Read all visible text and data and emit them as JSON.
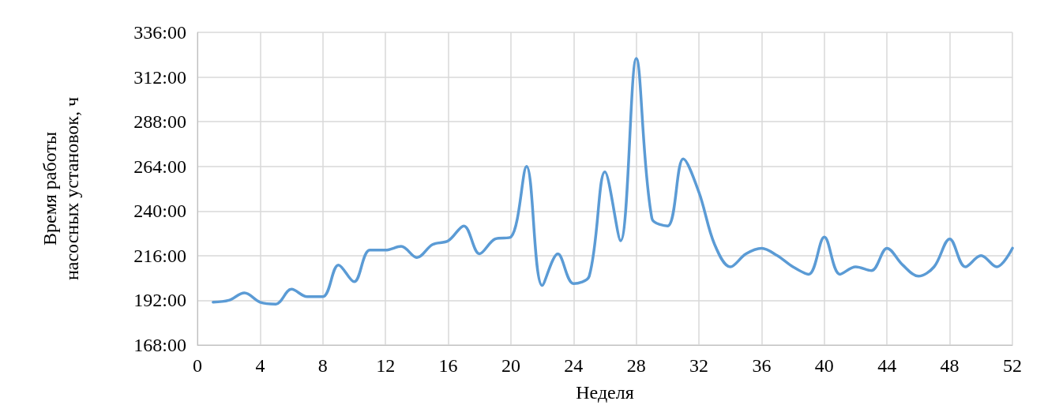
{
  "chart_data": {
    "type": "line",
    "xlabel": "Неделя",
    "ylabel": "Время работы насосных установок, ч",
    "x": [
      1,
      2,
      3,
      4,
      5,
      6,
      7,
      8,
      9,
      10,
      11,
      12,
      13,
      14,
      15,
      16,
      17,
      18,
      19,
      20,
      21,
      22,
      23,
      24,
      25,
      26,
      27,
      28,
      29,
      30,
      31,
      32,
      33,
      34,
      35,
      36,
      37,
      38,
      39,
      40,
      41,
      42,
      43,
      44,
      45,
      46,
      47,
      48,
      49,
      50,
      51,
      52
    ],
    "series": [
      {
        "color": "#5b9bd5",
        "values": [
          191,
          192,
          196,
          191,
          190,
          198,
          194,
          194,
          211,
          202,
          219,
          219,
          221,
          215,
          222,
          224,
          232,
          217,
          225,
          226,
          264,
          200,
          217,
          201,
          205,
          261,
          224,
          322,
          236,
          232,
          268,
          250,
          222,
          210,
          217,
          220,
          216,
          210,
          206,
          226,
          206,
          210,
          208,
          220,
          211,
          205,
          210,
          225,
          210,
          216,
          210,
          220
        ]
      }
    ],
    "xlim": [
      0,
      52
    ],
    "xticks": [
      0,
      4,
      8,
      12,
      16,
      20,
      24,
      28,
      32,
      36,
      40,
      44,
      48,
      52
    ],
    "ylim": [
      168,
      336
    ],
    "yticks": [
      {
        "value": 168,
        "label": "168:00"
      },
      {
        "value": 192,
        "label": "192:00"
      },
      {
        "value": 216,
        "label": "216:00"
      },
      {
        "value": 240,
        "label": "240:00"
      },
      {
        "value": 264,
        "label": "264:00"
      },
      {
        "value": 288,
        "label": "288:00"
      },
      {
        "value": 312,
        "label": "312:00"
      },
      {
        "value": 336,
        "label": "336:00"
      }
    ],
    "grid": true,
    "marker": "none",
    "line_style": "solid"
  }
}
